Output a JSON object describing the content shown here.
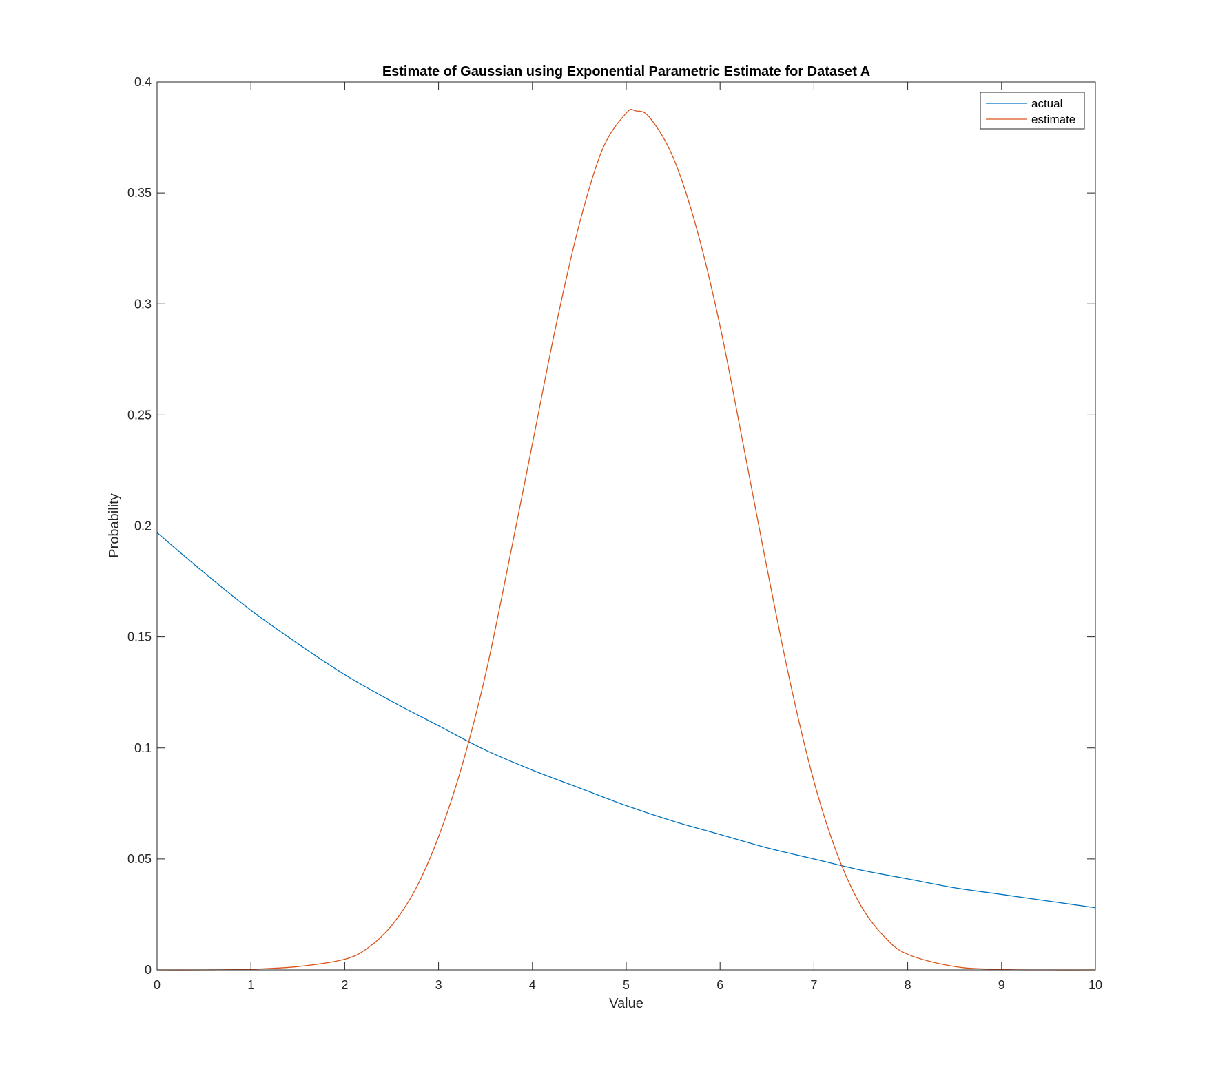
{
  "chart_data": {
    "type": "line",
    "title": "Estimate of Gaussian using Exponential Parametric Estimate for Dataset A",
    "xlabel": "Value",
    "ylabel": "Probability",
    "xlim": [
      0,
      10
    ],
    "ylim": [
      0,
      0.4
    ],
    "xticks": [
      0,
      1,
      2,
      3,
      4,
      5,
      6,
      7,
      8,
      9,
      10
    ],
    "xtick_labels": [
      "0",
      "1",
      "2",
      "3",
      "4",
      "5",
      "6",
      "7",
      "8",
      "9",
      "10"
    ],
    "yticks": [
      0,
      0.05,
      0.1,
      0.15,
      0.2,
      0.25,
      0.3,
      0.35,
      0.4
    ],
    "ytick_labels": [
      "0",
      "0.05",
      "0.1",
      "0.15",
      "0.2",
      "0.25",
      "0.3",
      "0.35",
      "0.4"
    ],
    "grid": false,
    "legend_position": "top-right",
    "series": [
      {
        "name": "actual",
        "color": "#0072BD",
        "x": [
          0,
          0.5,
          1,
          1.5,
          2,
          2.5,
          3,
          3.5,
          4,
          4.5,
          5,
          5.5,
          6,
          6.5,
          7,
          7.5,
          8,
          8.5,
          9,
          9.5,
          10
        ],
        "y": [
          0.197,
          0.179,
          0.162,
          0.147,
          0.133,
          0.121,
          0.11,
          0.099,
          0.09,
          0.082,
          0.074,
          0.067,
          0.061,
          0.055,
          0.05,
          0.045,
          0.041,
          0.037,
          0.034,
          0.031,
          0.028
        ]
      },
      {
        "name": "estimate",
        "color": "#D95319",
        "x": [
          0,
          0.5,
          1,
          1.5,
          2,
          2.25,
          2.5,
          2.75,
          3,
          3.25,
          3.5,
          3.75,
          4,
          4.25,
          4.5,
          4.75,
          5,
          5.1,
          5.25,
          5.5,
          5.75,
          6,
          6.25,
          6.5,
          6.75,
          7,
          7.25,
          7.5,
          7.75,
          8,
          8.5,
          9,
          9.5,
          10
        ],
        "y": [
          0.0,
          0.0,
          0.0003,
          0.0015,
          0.0048,
          0.01,
          0.02,
          0.036,
          0.06,
          0.092,
          0.133,
          0.184,
          0.237,
          0.29,
          0.336,
          0.37,
          0.386,
          0.387,
          0.384,
          0.366,
          0.334,
          0.29,
          0.236,
          0.181,
          0.129,
          0.085,
          0.052,
          0.029,
          0.015,
          0.007,
          0.0015,
          0.0002,
          0.0,
          0.0
        ]
      }
    ]
  }
}
